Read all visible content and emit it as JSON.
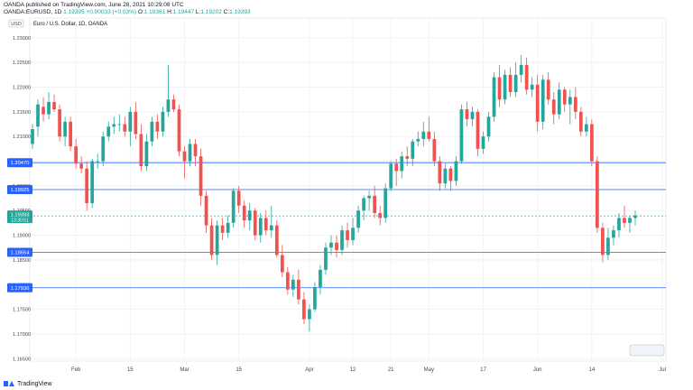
{
  "header": {
    "line1": "OANDA published on TradingView.com, June 28, 2021 10:29:08 UTC",
    "symbol": "OANDA:EURUSD, 1D",
    "price": "1.19395",
    "change": "+0.00033 (+0.03%)",
    "open_label": "O:",
    "open": "1.19361",
    "high_label": "H:",
    "high": "1.19447",
    "low_label": "L:",
    "low": "1.19202",
    "close_label": "C:",
    "close": "1.19393"
  },
  "footer": {
    "brand": "TradingView"
  },
  "colors": {
    "up": "#26a69a",
    "down": "#ef5350",
    "level_line": "#2962ff",
    "grid": "#eef0f3",
    "label_bg": "#2962ff"
  },
  "chart_data": {
    "type": "candlestick",
    "title": "Euro / U.S. Dollar, 1D, OANDA",
    "y_axis_label": "USD",
    "ylim": [
      1.1645,
      1.234
    ],
    "y_ticks": [
      "1.23000",
      "1.22500",
      "1.22000",
      "1.21500",
      "1.21000",
      "1.20500",
      "1.20000",
      "1.19500",
      "1.19000",
      "1.18500",
      "1.18000",
      "1.17500",
      "1.17000",
      "1.16500"
    ],
    "x_ticks": [
      {
        "label": "Feb",
        "index": 8
      },
      {
        "label": "15",
        "index": 18
      },
      {
        "label": "Mar",
        "index": 28
      },
      {
        "label": "15",
        "index": 38
      },
      {
        "label": "Apr",
        "index": 51
      },
      {
        "label": "12",
        "index": 59
      },
      {
        "label": "21",
        "index": 66
      },
      {
        "label": "May",
        "index": 73
      },
      {
        "label": "17",
        "index": 83
      },
      {
        "label": "Jun",
        "index": 93
      },
      {
        "label": "14",
        "index": 103
      },
      {
        "label": "Jul",
        "index": 116
      }
    ],
    "horizontal_levels": [
      {
        "value": 1.2047,
        "label": "1.20470"
      },
      {
        "value": 1.19925,
        "label": "1.19925"
      },
      {
        "value": 1.18654,
        "label": "1.18654"
      },
      {
        "value": 1.17936,
        "label": "1.17936"
      }
    ],
    "current_price": {
      "value": 1.19393,
      "label": "1.19393",
      "countdown": "13:30:51"
    },
    "candles": [
      [
        1.2085,
        1.2125,
        1.2075,
        1.2115
      ],
      [
        1.212,
        1.2175,
        1.21,
        1.2165
      ],
      [
        1.216,
        1.218,
        1.213,
        1.2145
      ],
      [
        1.2145,
        1.219,
        1.2135,
        1.217
      ],
      [
        1.217,
        1.2185,
        1.215,
        1.2155
      ],
      [
        1.2155,
        1.2165,
        1.209,
        1.21
      ],
      [
        1.21,
        1.214,
        1.208,
        1.213
      ],
      [
        1.213,
        1.214,
        1.207,
        1.208
      ],
      [
        1.208,
        1.2095,
        1.2035,
        1.2045
      ],
      [
        1.2045,
        1.206,
        1.2025,
        1.2035
      ],
      [
        1.2035,
        1.205,
        1.195,
        1.1965
      ],
      [
        1.1965,
        1.2055,
        1.1955,
        1.205
      ],
      [
        1.205,
        1.2065,
        1.2035,
        1.205
      ],
      [
        1.205,
        1.211,
        1.204,
        1.21
      ],
      [
        1.21,
        1.213,
        1.209,
        1.212
      ],
      [
        1.212,
        1.214,
        1.2105,
        1.2125
      ],
      [
        1.2125,
        1.2145,
        1.211,
        1.2125
      ],
      [
        1.2125,
        1.214,
        1.21,
        1.211
      ],
      [
        1.211,
        1.216,
        1.208,
        1.215
      ],
      [
        1.215,
        1.217,
        1.2095,
        1.2105
      ],
      [
        1.2105,
        1.2125,
        1.203,
        1.204
      ],
      [
        1.204,
        1.2105,
        1.203,
        1.209
      ],
      [
        1.209,
        1.214,
        1.208,
        1.213
      ],
      [
        1.213,
        1.2145,
        1.2095,
        1.211
      ],
      [
        1.211,
        1.216,
        1.21,
        1.215
      ],
      [
        1.215,
        1.2245,
        1.214,
        1.2175
      ],
      [
        1.2175,
        1.2185,
        1.215,
        1.2155
      ],
      [
        1.2155,
        1.2165,
        1.206,
        1.207
      ],
      [
        1.207,
        1.208,
        1.2015,
        1.205
      ],
      [
        1.205,
        1.2095,
        1.204,
        1.2085
      ],
      [
        1.2085,
        1.2095,
        1.204,
        1.206
      ],
      [
        1.206,
        1.2075,
        1.196,
        1.198
      ],
      [
        1.198,
        1.199,
        1.1905,
        1.192
      ],
      [
        1.192,
        1.1935,
        1.185,
        1.186
      ],
      [
        1.186,
        1.193,
        1.184,
        1.192
      ],
      [
        1.192,
        1.1935,
        1.189,
        1.1905
      ],
      [
        1.1905,
        1.194,
        1.1895,
        1.1925
      ],
      [
        1.1925,
        1.1995,
        1.1915,
        1.199
      ],
      [
        1.199,
        1.2,
        1.1945,
        1.196
      ],
      [
        1.196,
        1.197,
        1.1915,
        1.193
      ],
      [
        1.193,
        1.1965,
        1.191,
        1.195
      ],
      [
        1.195,
        1.1955,
        1.189,
        1.19
      ],
      [
        1.19,
        1.1945,
        1.1885,
        1.1935
      ],
      [
        1.1935,
        1.195,
        1.19,
        1.191
      ],
      [
        1.191,
        1.196,
        1.1895,
        1.192
      ],
      [
        1.192,
        1.193,
        1.1855,
        1.186
      ],
      [
        1.186,
        1.188,
        1.1815,
        1.1825
      ],
      [
        1.1825,
        1.1835,
        1.178,
        1.179
      ],
      [
        1.179,
        1.182,
        1.1775,
        1.181
      ],
      [
        1.181,
        1.183,
        1.176,
        1.177
      ],
      [
        1.177,
        1.1785,
        1.172,
        1.173
      ],
      [
        1.173,
        1.176,
        1.1705,
        1.175
      ],
      [
        1.175,
        1.1805,
        1.1745,
        1.1795
      ],
      [
        1.1795,
        1.184,
        1.178,
        1.183
      ],
      [
        1.183,
        1.1885,
        1.182,
        1.1875
      ],
      [
        1.1875,
        1.19,
        1.186,
        1.1885
      ],
      [
        1.1885,
        1.19,
        1.1855,
        1.187
      ],
      [
        1.187,
        1.192,
        1.186,
        1.191
      ],
      [
        1.191,
        1.1925,
        1.1875,
        1.189
      ],
      [
        1.189,
        1.1935,
        1.188,
        1.1915
      ],
      [
        1.1915,
        1.196,
        1.1905,
        1.195
      ],
      [
        1.195,
        1.198,
        1.193,
        1.1975
      ],
      [
        1.1975,
        1.199,
        1.195,
        1.198
      ],
      [
        1.198,
        1.2,
        1.1935,
        1.1945
      ],
      [
        1.1945,
        1.196,
        1.192,
        1.1935
      ],
      [
        1.1935,
        1.2005,
        1.1925,
        1.1995
      ],
      [
        1.1995,
        1.205,
        1.199,
        1.2045
      ],
      [
        1.2045,
        1.2055,
        1.2,
        1.203
      ],
      [
        1.203,
        1.207,
        1.2015,
        1.206
      ],
      [
        1.206,
        1.208,
        1.204,
        1.2055
      ],
      [
        1.2055,
        1.2095,
        1.204,
        1.209
      ],
      [
        1.209,
        1.211,
        1.208,
        1.2095
      ],
      [
        1.2095,
        1.213,
        1.208,
        1.211
      ],
      [
        1.211,
        1.214,
        1.209,
        1.2095
      ],
      [
        1.2095,
        1.211,
        1.204,
        1.205
      ],
      [
        1.205,
        1.206,
        1.199,
        1.2005
      ],
      [
        1.2005,
        1.2045,
        1.1995,
        1.2035
      ],
      [
        1.2035,
        1.204,
        1.199,
        1.201
      ],
      [
        1.201,
        1.206,
        1.2,
        1.205
      ],
      [
        1.205,
        1.2165,
        1.2045,
        1.2155
      ],
      [
        1.2155,
        1.217,
        1.212,
        1.2135
      ],
      [
        1.2135,
        1.216,
        1.212,
        1.215
      ],
      [
        1.215,
        1.2155,
        1.206,
        1.2075
      ],
      [
        1.2075,
        1.211,
        1.2065,
        1.21
      ],
      [
        1.21,
        1.215,
        1.209,
        1.214
      ],
      [
        1.214,
        1.223,
        1.213,
        1.222
      ],
      [
        1.222,
        1.2245,
        1.216,
        1.2175
      ],
      [
        1.2175,
        1.2235,
        1.2165,
        1.2225
      ],
      [
        1.2225,
        1.224,
        1.218,
        1.219
      ],
      [
        1.219,
        1.225,
        1.218,
        1.2225
      ],
      [
        1.2225,
        1.2265,
        1.221,
        1.2245
      ],
      [
        1.2245,
        1.226,
        1.2185,
        1.2195
      ],
      [
        1.2195,
        1.222,
        1.218,
        1.2205
      ],
      [
        1.2205,
        1.2225,
        1.211,
        1.213
      ],
      [
        1.213,
        1.2225,
        1.2115,
        1.2215
      ],
      [
        1.2215,
        1.223,
        1.2165,
        1.2175
      ],
      [
        1.2175,
        1.219,
        1.2125,
        1.2145
      ],
      [
        1.2145,
        1.221,
        1.2135,
        1.2195
      ],
      [
        1.2195,
        1.22,
        1.215,
        1.2165
      ],
      [
        1.2165,
        1.2195,
        1.2125,
        1.218
      ],
      [
        1.218,
        1.22,
        1.2135,
        1.215
      ],
      [
        1.215,
        1.216,
        1.21,
        1.211
      ],
      [
        1.211,
        1.214,
        1.21,
        1.2125
      ],
      [
        1.2125,
        1.2135,
        1.204,
        1.205
      ],
      [
        1.205,
        1.206,
        1.1905,
        1.1915
      ],
      [
        1.1915,
        1.1925,
        1.1845,
        1.186
      ],
      [
        1.186,
        1.1915,
        1.185,
        1.1895
      ],
      [
        1.1895,
        1.192,
        1.188,
        1.191
      ],
      [
        1.191,
        1.1945,
        1.1895,
        1.1935
      ],
      [
        1.1935,
        1.196,
        1.1915,
        1.1925
      ],
      [
        1.1925,
        1.194,
        1.1905,
        1.1935
      ],
      [
        1.1935,
        1.195,
        1.192,
        1.194
      ]
    ]
  }
}
